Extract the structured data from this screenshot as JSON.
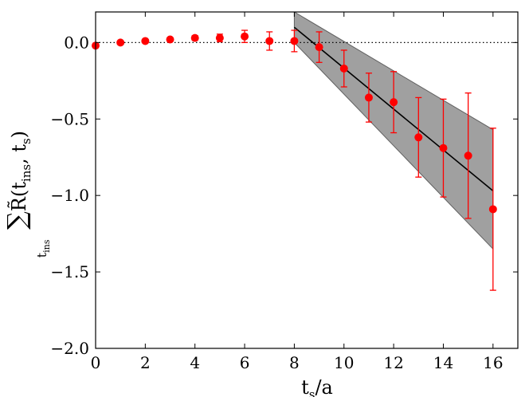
{
  "chart_data": {
    "type": "scatter",
    "title": "",
    "xlabel": {
      "base": "t",
      "sub": "s",
      "suffix": "/a"
    },
    "ylabel": {
      "sum_sub": "t",
      "sum_sub_sub": "ins",
      "func": "R̃",
      "arg_main_1": "t",
      "arg_sub_1": "ins",
      "arg_main_2": "t",
      "arg_sub_2": "s"
    },
    "xlim": [
      0,
      17
    ],
    "ylim": [
      -2.0,
      0.2
    ],
    "xticks": [
      0,
      2,
      4,
      6,
      8,
      10,
      12,
      14,
      16
    ],
    "xtick_labels": [
      "0",
      "2",
      "4",
      "6",
      "8",
      "10",
      "12",
      "14",
      "16"
    ],
    "yticks": [
      0.0,
      -0.5,
      -1.0,
      -1.5,
      -2.0
    ],
    "ytick_labels": [
      "0.0",
      "−0.5",
      "−1.0",
      "−1.5",
      "−2.0"
    ],
    "reference_line": {
      "y": 0.0,
      "style": "dotted",
      "color": "#000000"
    },
    "series": [
      {
        "marker": "circle",
        "color": "#ff0000",
        "points": [
          {
            "x": 0,
            "y": -0.02,
            "err": 0.0
          },
          {
            "x": 1,
            "y": 0.0,
            "err": 0.0
          },
          {
            "x": 2,
            "y": 0.01,
            "err": 0.01
          },
          {
            "x": 3,
            "y": 0.02,
            "err": 0.01
          },
          {
            "x": 4,
            "y": 0.03,
            "err": 0.015
          },
          {
            "x": 5,
            "y": 0.03,
            "err": 0.025
          },
          {
            "x": 6,
            "y": 0.04,
            "err": 0.04
          },
          {
            "x": 7,
            "y": 0.01,
            "err": 0.06
          },
          {
            "x": 8,
            "y": 0.01,
            "err": 0.07
          },
          {
            "x": 9,
            "y": -0.03,
            "err": 0.1
          },
          {
            "x": 10,
            "y": -0.17,
            "err": 0.12
          },
          {
            "x": 11,
            "y": -0.36,
            "err": 0.16
          },
          {
            "x": 12,
            "y": -0.39,
            "err": 0.2
          },
          {
            "x": 13,
            "y": -0.62,
            "err": 0.26
          },
          {
            "x": 14,
            "y": -0.69,
            "err": 0.32
          },
          {
            "x": 15,
            "y": -0.74,
            "err": 0.41
          },
          {
            "x": 16,
            "y": -1.09,
            "err": 0.53
          }
        ]
      }
    ],
    "fit": {
      "x": [
        8,
        16
      ],
      "y": [
        0.1,
        -0.97
      ],
      "band_upper": [
        0.2,
        -0.57
      ],
      "band_lower": [
        0.0,
        -1.35
      ],
      "line_color": "#000000",
      "band_color": "#a0a0a0"
    }
  }
}
